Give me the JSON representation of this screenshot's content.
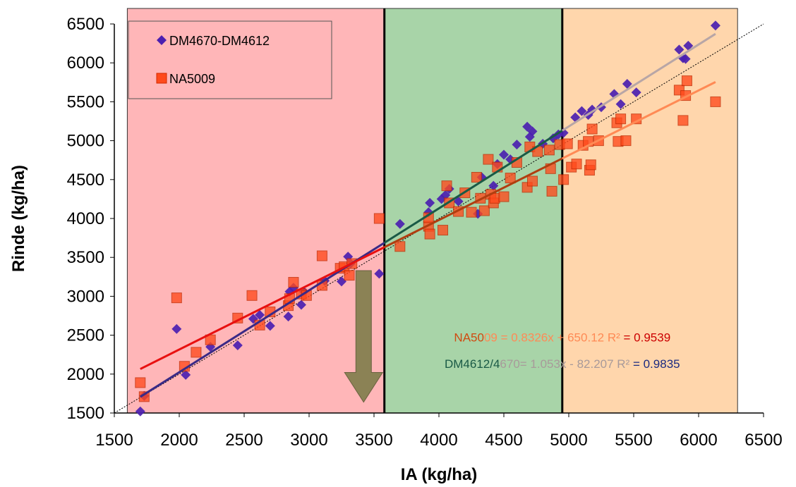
{
  "chart_data": {
    "type": "scatter",
    "xlabel": "IA (kg/ha)",
    "ylabel": "Rinde (kg/ha)",
    "xlim": [
      1500,
      6500
    ],
    "ylim": [
      1500,
      6500
    ],
    "xticks": [
      1500,
      2000,
      2500,
      3000,
      3500,
      4000,
      4500,
      5000,
      5500,
      6000,
      6500
    ],
    "yticks": [
      1500,
      2000,
      2500,
      3000,
      3500,
      4000,
      4500,
      5000,
      5500,
      6000,
      6500
    ],
    "grid": false,
    "legend_position": "top-left",
    "zones": [
      {
        "x_from": 1600,
        "x_to": 3580,
        "color": "#ffb6b8"
      },
      {
        "x_from": 3580,
        "x_to": 4950,
        "color": "#a8d4a8"
      },
      {
        "x_from": 4950,
        "x_to": 6300,
        "color": "#ffd6ac"
      }
    ],
    "zone_dividers": [
      3580,
      4950
    ],
    "arrow": {
      "x": 3420,
      "y_from": 3330,
      "y_to": 1640,
      "color": "#8b8255"
    },
    "identity_line": {
      "from": [
        1500,
        1500
      ],
      "to": [
        6500,
        6500
      ]
    },
    "series": [
      {
        "name": "DM4670-DM4612",
        "marker": "diamond",
        "color": "#4b1fb0",
        "points": [
          [
            1700,
            1520
          ],
          [
            1730,
            1720
          ],
          [
            1980,
            2580
          ],
          [
            2050,
            1990
          ],
          [
            2240,
            2350
          ],
          [
            2450,
            2370
          ],
          [
            2570,
            2710
          ],
          [
            2620,
            2760
          ],
          [
            2700,
            2620
          ],
          [
            2840,
            2740
          ],
          [
            2850,
            3060
          ],
          [
            2880,
            3110
          ],
          [
            2940,
            2890
          ],
          [
            2960,
            3060
          ],
          [
            3120,
            3200
          ],
          [
            3250,
            3190
          ],
          [
            3300,
            3510
          ],
          [
            3320,
            3420
          ],
          [
            3540,
            3290
          ],
          [
            3700,
            3930
          ],
          [
            3920,
            4080
          ],
          [
            3930,
            4200
          ],
          [
            4020,
            4250
          ],
          [
            4050,
            4300
          ],
          [
            4080,
            4380
          ],
          [
            4150,
            4220
          ],
          [
            4300,
            4060
          ],
          [
            4330,
            4530
          ],
          [
            4420,
            4420
          ],
          [
            4450,
            4700
          ],
          [
            4500,
            4820
          ],
          [
            4550,
            4760
          ],
          [
            4600,
            4950
          ],
          [
            4680,
            5180
          ],
          [
            4700,
            5050
          ],
          [
            4720,
            5120
          ],
          [
            4800,
            4960
          ],
          [
            4880,
            5030
          ],
          [
            4920,
            5080
          ],
          [
            4960,
            5100
          ],
          [
            5050,
            5300
          ],
          [
            5100,
            5380
          ],
          [
            5150,
            5330
          ],
          [
            5180,
            5400
          ],
          [
            5250,
            5430
          ],
          [
            5350,
            5600
          ],
          [
            5400,
            5470
          ],
          [
            5450,
            5730
          ],
          [
            5520,
            5620
          ],
          [
            5850,
            6170
          ],
          [
            5880,
            6060
          ],
          [
            5900,
            6050
          ],
          [
            5920,
            6220
          ],
          [
            6130,
            6480
          ]
        ]
      },
      {
        "name": "NA5009",
        "marker": "square",
        "color": "#ff4a1c",
        "points": [
          [
            1700,
            1890
          ],
          [
            1730,
            1710
          ],
          [
            1980,
            2980
          ],
          [
            2040,
            2100
          ],
          [
            2130,
            2280
          ],
          [
            2240,
            2440
          ],
          [
            2450,
            2720
          ],
          [
            2560,
            3010
          ],
          [
            2620,
            2630
          ],
          [
            2700,
            2800
          ],
          [
            2840,
            2880
          ],
          [
            2850,
            2970
          ],
          [
            2880,
            3180
          ],
          [
            2940,
            3030
          ],
          [
            2980,
            3010
          ],
          [
            3100,
            3140
          ],
          [
            3100,
            3520
          ],
          [
            3240,
            3360
          ],
          [
            3270,
            3380
          ],
          [
            3310,
            3270
          ],
          [
            3330,
            3420
          ],
          [
            3540,
            4000
          ],
          [
            3700,
            3640
          ],
          [
            3920,
            3900
          ],
          [
            3920,
            4010
          ],
          [
            3930,
            3800
          ],
          [
            4030,
            3850
          ],
          [
            4060,
            4420
          ],
          [
            4080,
            4200
          ],
          [
            4150,
            4090
          ],
          [
            4200,
            4330
          ],
          [
            4250,
            4080
          ],
          [
            4290,
            4530
          ],
          [
            4320,
            4260
          ],
          [
            4350,
            4100
          ],
          [
            4380,
            4760
          ],
          [
            4400,
            4310
          ],
          [
            4420,
            4200
          ],
          [
            4430,
            4260
          ],
          [
            4450,
            4660
          ],
          [
            4500,
            4280
          ],
          [
            4550,
            4520
          ],
          [
            4600,
            4720
          ],
          [
            4680,
            4400
          ],
          [
            4700,
            4920
          ],
          [
            4720,
            4480
          ],
          [
            4760,
            4860
          ],
          [
            4850,
            4880
          ],
          [
            4860,
            4640
          ],
          [
            4870,
            4350
          ],
          [
            4930,
            4950
          ],
          [
            4960,
            4500
          ],
          [
            4990,
            4960
          ],
          [
            5020,
            4660
          ],
          [
            5060,
            4700
          ],
          [
            5110,
            4940
          ],
          [
            5150,
            4990
          ],
          [
            5160,
            4620
          ],
          [
            5170,
            4690
          ],
          [
            5180,
            5150
          ],
          [
            5230,
            5000
          ],
          [
            5370,
            5230
          ],
          [
            5380,
            4990
          ],
          [
            5400,
            5280
          ],
          [
            5440,
            5000
          ],
          [
            5520,
            5280
          ],
          [
            5850,
            5650
          ],
          [
            5880,
            5260
          ],
          [
            5900,
            5580
          ],
          [
            5910,
            5770
          ],
          [
            6130,
            5500
          ]
        ]
      }
    ],
    "trendlines": [
      {
        "series": "DM4670-DM4612",
        "slope": 1.053,
        "intercept": -82.207,
        "x_range": [
          1700,
          6130
        ],
        "segments": [
          {
            "x_from": 1700,
            "x_to": 3580,
            "color": "#3a2a86"
          },
          {
            "x_from": 3580,
            "x_to": 4950,
            "color": "#1a5a46"
          },
          {
            "x_from": 4950,
            "x_to": 6130,
            "color": "#b8a6a6"
          }
        ]
      },
      {
        "series": "NA5009",
        "slope": 0.8326,
        "intercept": 650.12,
        "x_range": [
          1700,
          6130
        ],
        "segments": [
          {
            "x_from": 1700,
            "x_to": 3580,
            "color": "#e81010"
          },
          {
            "x_from": 3580,
            "x_to": 4950,
            "color": "#b03e10"
          },
          {
            "x_from": 4950,
            "x_to": 6130,
            "color": "#ff8a55"
          }
        ]
      }
    ],
    "equations": [
      {
        "anchor": [
          4950,
          2420
        ],
        "parts": [
          {
            "text": "NA50",
            "color": "#d04a10"
          },
          {
            "text": "09 = 0.8326x + 650.12 R² ",
            "color": "#ff8a55"
          },
          {
            "text": "= 0.9539",
            "color": "#cc0000"
          }
        ]
      },
      {
        "anchor": [
          4950,
          2080
        ],
        "parts": [
          {
            "text": "DM4612/4",
            "color": "#1a5a46"
          },
          {
            "text": "670= 1.053x - 82.207 R² ",
            "color": "#a89a9a"
          },
          {
            "text": "= 0.9835",
            "color": "#1a2a80"
          }
        ]
      }
    ]
  }
}
